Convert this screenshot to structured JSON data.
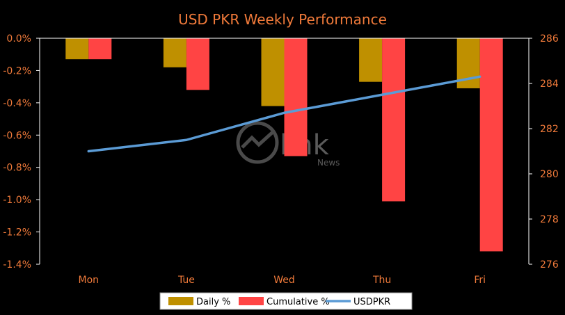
{
  "chart_data": {
    "type": "bar",
    "title": "USD PKR Weekly Performance",
    "categories": [
      "Mon",
      "Tue",
      "Wed",
      "Thu",
      "Fri"
    ],
    "series": [
      {
        "name": "Daily %",
        "type": "bar",
        "axis": "left",
        "color": "#bf9000",
        "values": [
          -0.13,
          -0.18,
          -0.42,
          -0.27,
          -0.31
        ]
      },
      {
        "name": "Cumulative %",
        "type": "bar",
        "axis": "left",
        "color": "#ff4444",
        "values": [
          -0.13,
          -0.32,
          -0.73,
          -1.01,
          -1.32
        ]
      },
      {
        "name": "USDPKR",
        "type": "line",
        "axis": "right",
        "color": "#5b9bd5",
        "values": [
          281.0,
          281.5,
          282.7,
          283.5,
          284.3
        ]
      }
    ],
    "y_left": {
      "ylim": [
        -1.4,
        0
      ],
      "ticks": [
        0,
        -0.2,
        -0.4,
        -0.6,
        -0.8,
        -1.0,
        -1.2,
        -1.4
      ],
      "tick_labels": [
        "0.0%",
        "-0.2%",
        "-0.4%",
        "-0.6%",
        "-0.8%",
        "-1.0%",
        "-1.2%",
        "-1.4%"
      ]
    },
    "y_right": {
      "ylim": [
        276,
        286
      ],
      "ticks": [
        286,
        284,
        282,
        280,
        278,
        276
      ],
      "tick_labels": [
        "286",
        "284",
        "282",
        "280",
        "278",
        "276"
      ]
    },
    "grid": false,
    "legend": {
      "position": "bottom",
      "entries": [
        "Daily %",
        "Cumulative %",
        "USDPKR"
      ]
    },
    "watermark": "Link News",
    "colors": {
      "background": "#000000",
      "text": "#f07a3a",
      "axis": "#ffffff"
    }
  }
}
